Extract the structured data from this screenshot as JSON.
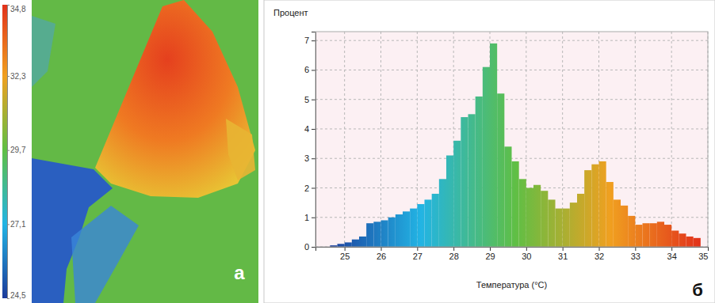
{
  "chart_data": [
    {
      "type": "image",
      "annotations": [
        "а"
      ],
      "colorbar_range": [
        24.5,
        34.8
      ],
      "colorbar_ticks": [
        {
          "value": 24.5,
          "label": "24,5"
        },
        {
          "value": 27.1,
          "label": "27,1"
        },
        {
          "value": 29.7,
          "label": "29,7"
        },
        {
          "value": 32.3,
          "label": "32,3"
        },
        {
          "value": 34.8,
          "label": "34,8"
        }
      ]
    },
    {
      "type": "histogram",
      "title": "Процент",
      "x_label": "Температура (°C)",
      "annotations": [
        "б"
      ],
      "bins": [
        24.6,
        24.8,
        25.0,
        25.2,
        25.4,
        25.6,
        25.8,
        26.0,
        26.2,
        26.4,
        26.6,
        26.8,
        27.0,
        27.2,
        27.4,
        27.6,
        27.8,
        28.0,
        28.2,
        28.4,
        28.6,
        28.8,
        29.0,
        29.2,
        29.4,
        29.6,
        29.8,
        30.0,
        30.2,
        30.4,
        30.6,
        30.8,
        31.0,
        31.2,
        31.4,
        31.6,
        31.8,
        32.0,
        32.2,
        32.4,
        32.6,
        32.8,
        33.0,
        33.2,
        33.4,
        33.6,
        33.8,
        34.0,
        34.2,
        34.4,
        34.6,
        34.8
      ],
      "values": [
        0.05,
        0.1,
        0.15,
        0.25,
        0.35,
        0.8,
        0.85,
        0.9,
        1.0,
        1.1,
        1.2,
        1.3,
        1.45,
        1.6,
        1.8,
        2.3,
        3.1,
        3.6,
        4.4,
        4.5,
        5.1,
        6.1,
        6.9,
        5.2,
        3.4,
        2.9,
        2.3,
        2.0,
        2.1,
        1.9,
        1.6,
        1.3,
        1.3,
        1.5,
        1.8,
        2.6,
        2.8,
        2.9,
        2.2,
        1.6,
        1.4,
        1.05,
        0.75,
        0.8,
        0.8,
        0.85,
        0.75,
        0.55,
        0.45,
        0.35,
        0.3
      ],
      "xlim": [
        24.2,
        35
      ],
      "xticks": [
        25,
        26,
        27,
        28,
        29,
        30,
        31,
        32,
        33,
        34,
        35
      ],
      "ylim": [
        0,
        7.3
      ],
      "yticks": [
        0,
        1,
        2,
        3,
        4,
        5,
        6,
        7
      ],
      "grid": true
    }
  ]
}
